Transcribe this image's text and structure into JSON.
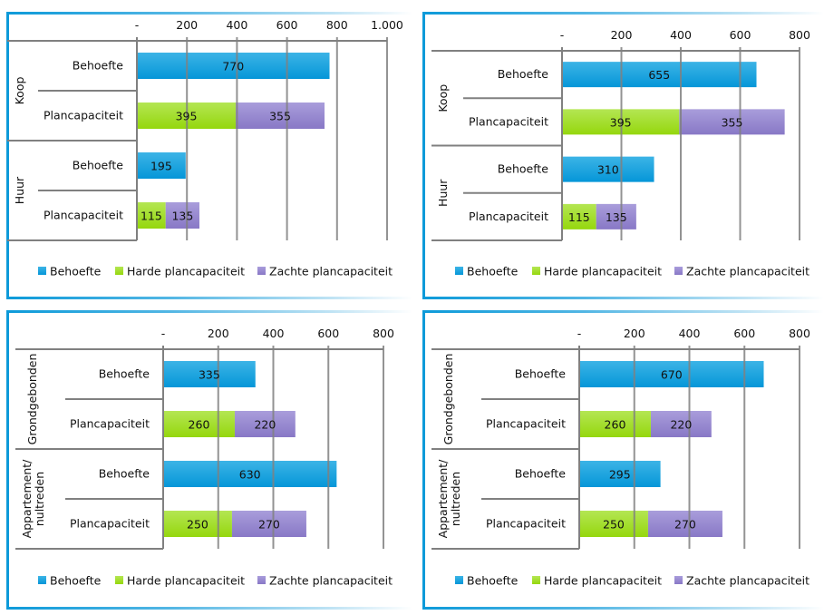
{
  "colors": {
    "behoefte_top": "#3cb4e6",
    "behoefte_bottom": "#0596d8",
    "harde_top": "#b4e653",
    "harde_bottom": "#95d70d",
    "zachte_top": "#a99ddb",
    "zachte_bottom": "#8878c6",
    "grid": "#808080",
    "frame": "#0d9ad9"
  },
  "legend": [
    {
      "key": "behoefte",
      "label": "Behoefte"
    },
    {
      "key": "harde",
      "label": "Harde plancapaciteit"
    },
    {
      "key": "zachte",
      "label": "Zachte plancapaciteit"
    }
  ],
  "chart_data": [
    {
      "type": "bar",
      "orientation": "horizontal-stacked",
      "position": "top-left",
      "xlim": [
        0,
        1000
      ],
      "ticks": [
        {
          "value": 0,
          "label": "-"
        },
        {
          "value": 200,
          "label": "200"
        },
        {
          "value": 400,
          "label": "400"
        },
        {
          "value": 600,
          "label": "600"
        },
        {
          "value": 800,
          "label": "800"
        },
        {
          "value": 1000,
          "label": "1.000"
        }
      ],
      "groups": [
        {
          "label": "Koop",
          "rows": [
            {
              "label": "Behoefte",
              "segments": [
                {
                  "series": "behoefte",
                  "value": 770
                }
              ]
            },
            {
              "label": "Plancapaciteit",
              "segments": [
                {
                  "series": "harde",
                  "value": 395
                },
                {
                  "series": "zachte",
                  "value": 355
                }
              ]
            }
          ]
        },
        {
          "label": "Huur",
          "rows": [
            {
              "label": "Behoefte",
              "segments": [
                {
                  "series": "behoefte",
                  "value": 195
                }
              ]
            },
            {
              "label": "Plancapaciteit",
              "segments": [
                {
                  "series": "harde",
                  "value": 115
                },
                {
                  "series": "zachte",
                  "value": 135
                }
              ]
            }
          ]
        }
      ],
      "legend_position": "bottom"
    },
    {
      "type": "bar",
      "orientation": "horizontal-stacked",
      "position": "top-right",
      "xlim": [
        0,
        800
      ],
      "ticks": [
        {
          "value": 0,
          "label": "-"
        },
        {
          "value": 200,
          "label": "200"
        },
        {
          "value": 400,
          "label": "400"
        },
        {
          "value": 600,
          "label": "600"
        },
        {
          "value": 800,
          "label": "800"
        }
      ],
      "groups": [
        {
          "label": "Koop",
          "rows": [
            {
              "label": "Behoefte",
              "segments": [
                {
                  "series": "behoefte",
                  "value": 655
                }
              ]
            },
            {
              "label": "Plancapaciteit",
              "segments": [
                {
                  "series": "harde",
                  "value": 395
                },
                {
                  "series": "zachte",
                  "value": 355
                }
              ]
            }
          ]
        },
        {
          "label": "Huur",
          "rows": [
            {
              "label": "Behoefte",
              "segments": [
                {
                  "series": "behoefte",
                  "value": 310
                }
              ]
            },
            {
              "label": "Plancapaciteit",
              "segments": [
                {
                  "series": "harde",
                  "value": 115
                },
                {
                  "series": "zachte",
                  "value": 135
                }
              ]
            }
          ]
        }
      ],
      "legend_position": "bottom"
    },
    {
      "type": "bar",
      "orientation": "horizontal-stacked",
      "position": "bottom-left",
      "xlim": [
        0,
        800
      ],
      "ticks": [
        {
          "value": 0,
          "label": "-"
        },
        {
          "value": 200,
          "label": "200"
        },
        {
          "value": 400,
          "label": "400"
        },
        {
          "value": 600,
          "label": "600"
        },
        {
          "value": 800,
          "label": "800"
        }
      ],
      "groups": [
        {
          "label": "Grondgebonden",
          "label_lines": [
            "Grondgebonden"
          ],
          "rows": [
            {
              "label": "Behoefte",
              "segments": [
                {
                  "series": "behoefte",
                  "value": 335
                }
              ]
            },
            {
              "label": "Plancapaciteit",
              "segments": [
                {
                  "series": "harde",
                  "value": 260
                },
                {
                  "series": "zachte",
                  "value": 220
                }
              ]
            }
          ]
        },
        {
          "label": "Appartement/ nultreden",
          "label_lines": [
            "Appartement/",
            "nultreden"
          ],
          "rows": [
            {
              "label": "Behoefte",
              "segments": [
                {
                  "series": "behoefte",
                  "value": 630
                }
              ]
            },
            {
              "label": "Plancapaciteit",
              "segments": [
                {
                  "series": "harde",
                  "value": 250
                },
                {
                  "series": "zachte",
                  "value": 270
                }
              ]
            }
          ]
        }
      ],
      "legend_position": "bottom"
    },
    {
      "type": "bar",
      "orientation": "horizontal-stacked",
      "position": "bottom-right",
      "xlim": [
        0,
        800
      ],
      "ticks": [
        {
          "value": 0,
          "label": "-"
        },
        {
          "value": 200,
          "label": "200"
        },
        {
          "value": 400,
          "label": "400"
        },
        {
          "value": 600,
          "label": "600"
        },
        {
          "value": 800,
          "label": "800"
        }
      ],
      "groups": [
        {
          "label": "Grondgebonden",
          "label_lines": [
            "Grondgebonden"
          ],
          "rows": [
            {
              "label": "Behoefte",
              "segments": [
                {
                  "series": "behoefte",
                  "value": 670
                }
              ]
            },
            {
              "label": "Plancapaciteit",
              "segments": [
                {
                  "series": "harde",
                  "value": 260
                },
                {
                  "series": "zachte",
                  "value": 220
                }
              ]
            }
          ]
        },
        {
          "label": "Appartement/ nultreden",
          "label_lines": [
            "Appartement/",
            "nultreden"
          ],
          "rows": [
            {
              "label": "Behoefte",
              "segments": [
                {
                  "series": "behoefte",
                  "value": 295
                }
              ]
            },
            {
              "label": "Plancapaciteit",
              "segments": [
                {
                  "series": "harde",
                  "value": 250
                },
                {
                  "series": "zachte",
                  "value": 270
                }
              ]
            }
          ]
        }
      ],
      "legend_position": "bottom"
    }
  ]
}
